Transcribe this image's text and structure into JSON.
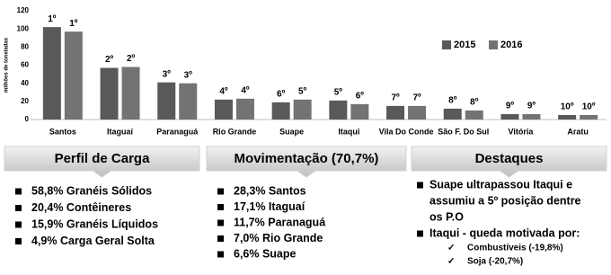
{
  "chart_data": {
    "type": "bar",
    "y_label": "milhões de toneladas",
    "categories": [
      "Santos",
      "Itaguaí",
      "Paranaguá",
      "Rio Grande",
      "Suape",
      "Itaqui",
      "Vila Do Conde",
      "São F. Do Sul",
      "Vitória",
      "Aratu"
    ],
    "series": [
      {
        "name": "2015",
        "color": "#595959",
        "values": [
          102,
          57,
          41,
          22,
          19,
          21,
          15,
          12,
          6,
          5
        ],
        "rank_labels": [
          "1º",
          "2º",
          "3º",
          "4º",
          "6º",
          "5º",
          "7º",
          "8º",
          "9º",
          "10º"
        ]
      },
      {
        "name": "2016",
        "color": "#737373",
        "values": [
          97,
          58,
          40,
          23,
          22,
          17,
          15,
          10,
          6,
          5
        ],
        "rank_labels": [
          "1º",
          "2º",
          "3º",
          "4º",
          "5º",
          "6º",
          "7º",
          "8º",
          "9º",
          "10º"
        ]
      }
    ],
    "ylim": [
      0,
      120
    ],
    "yticks": [
      0,
      20,
      40,
      60,
      80,
      100,
      120
    ],
    "grid": false,
    "legend": "top-right"
  },
  "panels": [
    {
      "title": "Perfil de Carga",
      "items": [
        {
          "lines": [
            "58,8% Granéis Sólidos"
          ]
        },
        {
          "lines": [
            "20,4% Contêineres"
          ]
        },
        {
          "lines": [
            "15,9% Granéis Líquidos"
          ]
        },
        {
          "lines": [
            "4,9% Carga Geral Solta"
          ]
        }
      ]
    },
    {
      "title": "Movimentação (70,7%)",
      "items": [
        {
          "lines": [
            "28,3% Santos"
          ]
        },
        {
          "lines": [
            "17,1% Itaguaí"
          ]
        },
        {
          "lines": [
            "11,7% Paranaguá"
          ]
        },
        {
          "lines": [
            "7,0% Rio Grande"
          ]
        },
        {
          "lines": [
            "6,6% Suape"
          ]
        }
      ]
    },
    {
      "title": "Destaques",
      "items": [
        {
          "lines": [
            "Suape ultrapassou Itaqui e",
            "assumiu a 5º posição dentre",
            "os P.O"
          ]
        },
        {
          "lines": [
            "Itaqui - queda motivada por:"
          ],
          "subitems": [
            "Combustíveis (-19,8%)",
            "Soja (-20,7%)"
          ]
        }
      ]
    }
  ]
}
